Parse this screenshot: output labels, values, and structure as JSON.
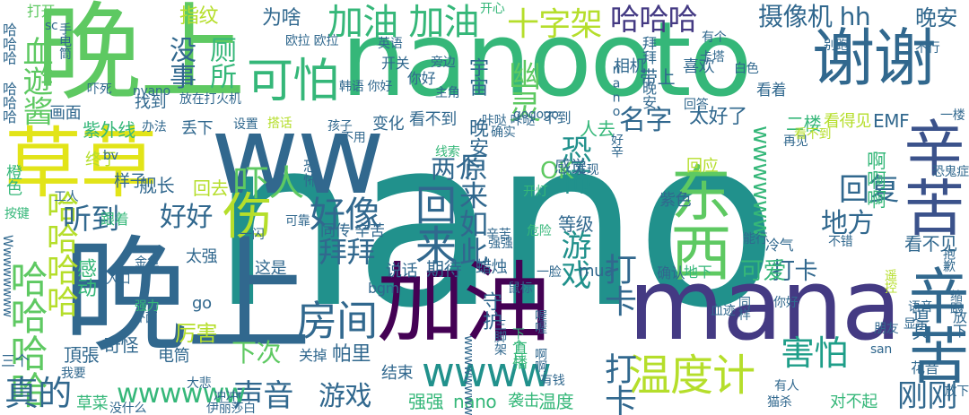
{
  "palette": {
    "yellow": "#e2e418",
    "lime": "#b5de2b",
    "green": "#5ec962",
    "green2": "#35b779",
    "teal": "#21918c",
    "cyan": "#1f9e89",
    "blue": "#31688e",
    "navy": "#3b528b",
    "indigo": "#443a83",
    "purple": "#440154"
  },
  "words": [
    {
      "text": "nano",
      "color": "teal"
    },
    {
      "text": "晚上",
      "color": "green"
    },
    {
      "text": "晚上",
      "color": "blue"
    },
    {
      "text": "nanooto",
      "color": "green2"
    },
    {
      "text": "ww",
      "color": "blue"
    },
    {
      "text": "草草",
      "color": "yellow"
    },
    {
      "text": "加油",
      "color": "purple"
    },
    {
      "text": "mana",
      "color": "indigo"
    },
    {
      "text": "谢谢",
      "color": "blue"
    },
    {
      "text": "辛苦",
      "color": "navy"
    },
    {
      "text": "辛苦",
      "color": "blue"
    },
    {
      "text": "东西",
      "color": "green"
    },
    {
      "text": "wwww",
      "color": "teal"
    },
    {
      "text": "温度计",
      "color": "lime"
    },
    {
      "text": "房间",
      "color": "blue"
    },
    {
      "text": "伤",
      "color": "lime"
    },
    {
      "text": "加油 加油",
      "color": "green2"
    },
    {
      "text": "哈哈哈",
      "color": "indigo"
    },
    {
      "text": "十字架",
      "color": "lime"
    },
    {
      "text": "摄像机 hh",
      "color": "blue"
    },
    {
      "text": "晚安",
      "color": "blue"
    },
    {
      "text": "为啥",
      "color": "blue"
    },
    {
      "text": "指纹",
      "color": "lime"
    },
    {
      "text": "打开",
      "color": "green"
    },
    {
      "text": "没事",
      "color": "blue"
    },
    {
      "text": "可怕",
      "color": "green2"
    },
    {
      "text": "厕所",
      "color": "green2"
    },
    {
      "text": "血遊酱",
      "color": "green"
    },
    {
      "text": "幽灵",
      "color": "green"
    },
    {
      "text": "回来",
      "color": "blue"
    },
    {
      "text": "原来如此",
      "color": "blue"
    },
    {
      "text": "恐怖 游戏",
      "color": "teal"
    },
    {
      "text": "好像",
      "color": "blue"
    },
    {
      "text": "拜拜",
      "color": "blue"
    },
    {
      "text": "回复",
      "color": "blue"
    },
    {
      "text": "地方",
      "color": "blue"
    },
    {
      "text": "哈哈哈哈",
      "color": "green"
    },
    {
      "text": "哈哈哈哈",
      "color": "lime"
    },
    {
      "text": "吓人",
      "color": "green"
    },
    {
      "text": "听到",
      "color": "blue"
    },
    {
      "text": "好好",
      "color": "blue"
    },
    {
      "text": "两个",
      "color": "blue"
    },
    {
      "text": "OK",
      "color": "green"
    },
    {
      "text": "名字",
      "color": "blue"
    },
    {
      "text": "太好了",
      "color": "blue"
    },
    {
      "text": "真的",
      "color": "blue"
    },
    {
      "text": "声音",
      "color": "blue"
    },
    {
      "text": "游戏",
      "color": "blue"
    },
    {
      "text": "刚刚",
      "color": "blue"
    },
    {
      "text": "害怕",
      "color": "cyan"
    },
    {
      "text": "打卡 打卡",
      "color": "blue"
    },
    {
      "text": "打卡",
      "color": "blue"
    },
    {
      "text": "可爱",
      "color": "green2"
    },
    {
      "text": "wwwwww",
      "color": "green2"
    },
    {
      "text": "wwwwww",
      "color": "green2"
    },
    {
      "text": "下次",
      "color": "green"
    },
    {
      "text": "帕里",
      "color": "blue"
    },
    {
      "text": "强强",
      "color": "green2"
    },
    {
      "text": "nano",
      "color": "green2"
    },
    {
      "text": "温度",
      "color": "green2"
    },
    {
      "text": "对不起",
      "color": "green2"
    },
    {
      "text": "草菜",
      "color": "green2"
    },
    {
      "text": "奇怪",
      "color": "blue"
    },
    {
      "text": "厉害",
      "color": "lime"
    },
    {
      "text": "这是",
      "color": "blue"
    },
    {
      "text": "期待",
      "color": "blue"
    },
    {
      "text": "蜡烛",
      "color": "blue"
    },
    {
      "text": "mua",
      "color": "blue"
    },
    {
      "text": "等级",
      "color": "blue"
    },
    {
      "text": "感觉",
      "color": "blue"
    },
    {
      "text": "结束",
      "color": "blue"
    },
    {
      "text": "电筒",
      "color": "blue"
    },
    {
      "text": "关掉",
      "color": "blue"
    },
    {
      "text": "说话",
      "color": "blue"
    },
    {
      "text": "确认",
      "color": "blue"
    },
    {
      "text": "冷气",
      "color": "blue"
    },
    {
      "text": "看不见",
      "color": "blue"
    },
    {
      "text": "地下",
      "color": "green2"
    },
    {
      "text": "花音",
      "color": "blue"
    },
    {
      "text": "二楼",
      "color": "green2"
    },
    {
      "text": "看得见",
      "color": "lime"
    },
    {
      "text": "EMF",
      "color": "blue"
    },
    {
      "text": "啊啊啊",
      "color": "green2"
    },
    {
      "text": "舰长",
      "color": "blue"
    },
    {
      "text": "回应",
      "color": "lime"
    },
    {
      "text": "紫外线",
      "color": "green2"
    },
    {
      "text": "终于",
      "color": "lime"
    },
    {
      "text": "样子",
      "color": "blue"
    },
    {
      "text": "回去",
      "color": "lime"
    },
    {
      "text": "丢下",
      "color": "blue"
    },
    {
      "text": "变化",
      "color": "blue"
    },
    {
      "text": "看不到",
      "color": "blue"
    },
    {
      "text": "不到",
      "color": "blue"
    },
    {
      "text": "人去",
      "color": "green2"
    },
    {
      "text": "带上",
      "color": "blue"
    },
    {
      "text": "喜欢",
      "color": "blue"
    },
    {
      "text": "相机",
      "color": "blue"
    },
    {
      "text": "守护",
      "color": "blue"
    },
    {
      "text": "宇宙 晚安",
      "color": "blue"
    },
    {
      "text": "nano 好辛",
      "color": "blue"
    },
    {
      "text": "拜拜 晚安",
      "color": "blue"
    },
    {
      "text": "太强",
      "color": "blue"
    },
    {
      "text": "go",
      "color": "blue"
    },
    {
      "text": "bgm",
      "color": "blue"
    },
    {
      "text": "三个",
      "color": "blue"
    },
    {
      "text": "頂張",
      "color": "blue"
    },
    {
      "text": "找到",
      "color": "blue"
    },
    {
      "text": "画面",
      "color": "blue"
    },
    {
      "text": "感动",
      "color": "green2"
    },
    {
      "text": "同传 辛苦",
      "color": "blue"
    },
    {
      "text": "看着",
      "color": "blue"
    },
    {
      "text": "开关",
      "color": "blue"
    },
    {
      "text": "你好",
      "color": "blue"
    },
    {
      "text": "袭击",
      "color": "green2"
    },
    {
      "text": "恐怖",
      "color": "blue"
    },
    {
      "text": "紫色",
      "color": "blue"
    },
    {
      "text": "道具",
      "color": "blue"
    },
    {
      "text": "跟着",
      "color": "green2"
    },
    {
      "text": "按键",
      "color": "green2"
    },
    {
      "text": "放下",
      "color": "blue"
    },
    {
      "text": "一脸",
      "color": "blue"
    },
    {
      "text": "血迹",
      "color": "blue"
    },
    {
      "text": "鼠标",
      "color": "blue"
    },
    {
      "text": "主角",
      "color": "blue"
    },
    {
      "text": "橙色",
      "color": "green2"
    },
    {
      "text": "有人",
      "color": "blue"
    },
    {
      "text": "发现",
      "color": "blue"
    },
    {
      "text": "再见",
      "color": "blue"
    },
    {
      "text": "恐鬼症",
      "color": "blue"
    },
    {
      "text": "白色",
      "color": "blue"
    },
    {
      "text": "不行",
      "color": "blue"
    },
    {
      "text": "别跑",
      "color": "blue"
    },
    {
      "text": "设置",
      "color": "blue"
    },
    {
      "text": "搭话",
      "color": "lime"
    },
    {
      "text": "办法",
      "color": "blue"
    },
    {
      "text": "孩子",
      "color": "blue"
    },
    {
      "text": "吓死",
      "color": "blue"
    },
    {
      "text": "放在打火机",
      "color": "blue"
    },
    {
      "text": "欧拉 欧拉",
      "color": "blue"
    },
    {
      "text": "旁边",
      "color": "blue"
    },
    {
      "text": "手电筒",
      "color": "blue"
    },
    {
      "text": "开心",
      "color": "green2"
    },
    {
      "text": "有个",
      "color": "blue"
    },
    {
      "text": "卡塔",
      "color": "blue"
    },
    {
      "text": "回答",
      "color": "blue"
    },
    {
      "text": "看不到",
      "color": "lime"
    },
    {
      "text": "韩语 你好",
      "color": "blue"
    },
    {
      "text": "英语",
      "color": "blue"
    },
    {
      "text": "一楼",
      "color": "blue"
    },
    {
      "text": "确实",
      "color": "blue"
    },
    {
      "text": "金鱼",
      "color": "blue"
    },
    {
      "text": "入口",
      "color": "blue"
    },
    {
      "text": "强力",
      "color": "green2"
    },
    {
      "text": "外面",
      "color": "blue"
    },
    {
      "text": "有钱",
      "color": "blue"
    },
    {
      "text": "冲冲",
      "color": "blue"
    },
    {
      "text": "伊丽莎白",
      "color": "blue"
    },
    {
      "text": "猫杀",
      "color": "blue"
    },
    {
      "text": "放下",
      "color": "blue"
    },
    {
      "text": "没什么",
      "color": "blue"
    },
    {
      "text": "我要",
      "color": "blue"
    },
    {
      "text": "大悲",
      "color": "blue"
    },
    {
      "text": "线索",
      "color": "green2"
    },
    {
      "text": "开灯",
      "color": "green2"
    },
    {
      "text": "工人",
      "color": "blue"
    },
    {
      "text": "可靠",
      "color": "blue"
    },
    {
      "text": "一闪",
      "color": "blue"
    },
    {
      "text": "危险",
      "color": "green2"
    },
    {
      "text": "能行",
      "color": "blue"
    },
    {
      "text": "不错",
      "color": "blue"
    },
    {
      "text": "抱歉",
      "color": "blue"
    },
    {
      "text": "语音",
      "color": "blue"
    },
    {
      "text": "显示",
      "color": "blue"
    },
    {
      "text": "朋友",
      "color": "blue"
    },
    {
      "text": "san",
      "color": "blue"
    },
    {
      "text": "同样",
      "color": "blue"
    },
    {
      "text": "下个月",
      "color": "green2"
    },
    {
      "text": "直播",
      "color": "green2"
    },
    {
      "text": "缩跟",
      "color": "blue"
    },
    {
      "text": "辛苦",
      "color": "blue"
    },
    {
      "text": "gogogo",
      "color": "blue"
    },
    {
      "text": "不用",
      "color": "blue"
    },
    {
      "text": "sc",
      "color": "blue"
    },
    {
      "text": "bv",
      "color": "blue"
    },
    {
      "text": "哈哈哈 哈哈哈",
      "color": "blue"
    },
    {
      "text": "nyano",
      "color": "blue"
    },
    {
      "text": "Wwwwwwww",
      "color": "blue"
    },
    {
      "text": "wwwwwwww",
      "color": "blue"
    },
    {
      "text": "三脚架",
      "color": "blue"
    },
    {
      "text": "喔喔 啊啊",
      "color": "blue"
    },
    {
      "text": "你好",
      "color": "blue"
    },
    {
      "text": "遥控",
      "color": "lime"
    },
    {
      "text": "咔哒 咔哒",
      "color": "blue"
    },
    {
      "text": "强强",
      "color": "blue"
    }
  ]
}
